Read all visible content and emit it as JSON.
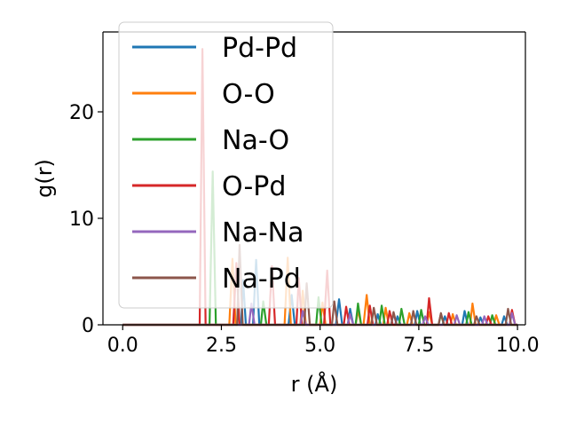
{
  "chart_data": {
    "type": "line",
    "xlabel": "r (Å)",
    "ylabel": "g(r)",
    "xlim": [
      -0.5,
      10.2
    ],
    "ylim": [
      0,
      27.5
    ],
    "xticks": [
      0.0,
      2.5,
      5.0,
      7.5,
      10.0
    ],
    "xtick_labels": [
      "0.0",
      "2.5",
      "5.0",
      "7.5",
      "10.0"
    ],
    "yticks": [
      0,
      10,
      20
    ],
    "ytick_labels": [
      "0",
      "10",
      "20"
    ],
    "grid": false,
    "legend_position": "upper-left",
    "series": [
      {
        "name": "Pd-Pd",
        "color": "#1f77b4",
        "points": [
          [
            0,
            0
          ],
          [
            3.0,
            0
          ],
          [
            3.05,
            4.2
          ],
          [
            3.12,
            0
          ],
          [
            3.3,
            0
          ],
          [
            3.38,
            6.1
          ],
          [
            3.46,
            0
          ],
          [
            4.2,
            0
          ],
          [
            4.28,
            2.8
          ],
          [
            4.36,
            0
          ],
          [
            5.4,
            0
          ],
          [
            5.48,
            2.4
          ],
          [
            5.56,
            0
          ],
          [
            5.7,
            0
          ],
          [
            5.76,
            1.5
          ],
          [
            5.84,
            0
          ],
          [
            6.4,
            0
          ],
          [
            6.46,
            1.0
          ],
          [
            6.54,
            0
          ],
          [
            6.9,
            0
          ],
          [
            6.96,
            0.8
          ],
          [
            7.04,
            0
          ],
          [
            7.4,
            0
          ],
          [
            7.46,
            1.3
          ],
          [
            7.54,
            0
          ],
          [
            8.1,
            0
          ],
          [
            8.16,
            0.8
          ],
          [
            8.24,
            0
          ],
          [
            8.6,
            0
          ],
          [
            8.66,
            1.3
          ],
          [
            8.74,
            0
          ],
          [
            9.0,
            0
          ],
          [
            9.06,
            0.7
          ],
          [
            9.14,
            0
          ],
          [
            9.6,
            0
          ],
          [
            9.66,
            0.8
          ],
          [
            9.74,
            0
          ],
          [
            10.0,
            0
          ]
        ]
      },
      {
        "name": "O-O",
        "color": "#ff7f0e",
        "points": [
          [
            0,
            0
          ],
          [
            2.7,
            0
          ],
          [
            2.78,
            6.2
          ],
          [
            2.86,
            0
          ],
          [
            4.1,
            0
          ],
          [
            4.18,
            6.3
          ],
          [
            4.26,
            0
          ],
          [
            4.5,
            0
          ],
          [
            4.56,
            3.2
          ],
          [
            4.64,
            0
          ],
          [
            5.0,
            0
          ],
          [
            5.06,
            2.1
          ],
          [
            5.14,
            0
          ],
          [
            5.9,
            0
          ],
          [
            5.96,
            1.4
          ],
          [
            6.04,
            0
          ],
          [
            6.1,
            0
          ],
          [
            6.18,
            2.8
          ],
          [
            6.26,
            0
          ],
          [
            6.6,
            0
          ],
          [
            6.66,
            1.6
          ],
          [
            6.74,
            0
          ],
          [
            7.2,
            0
          ],
          [
            7.26,
            1.1
          ],
          [
            7.34,
            0
          ],
          [
            7.7,
            0
          ],
          [
            7.76,
            1.2
          ],
          [
            7.84,
            0
          ],
          [
            8.3,
            0
          ],
          [
            8.36,
            1.0
          ],
          [
            8.44,
            0
          ],
          [
            8.8,
            0
          ],
          [
            8.86,
            2.0
          ],
          [
            8.94,
            0
          ],
          [
            9.4,
            0
          ],
          [
            9.46,
            0.9
          ],
          [
            9.54,
            0
          ],
          [
            10.0,
            0
          ]
        ]
      },
      {
        "name": "Na-O",
        "color": "#2ca02c",
        "points": [
          [
            0,
            0
          ],
          [
            2.2,
            0
          ],
          [
            2.28,
            14.4
          ],
          [
            2.36,
            0
          ],
          [
            3.5,
            0
          ],
          [
            3.56,
            2.2
          ],
          [
            3.64,
            0
          ],
          [
            4.9,
            0
          ],
          [
            4.96,
            2.6
          ],
          [
            5.04,
            0
          ],
          [
            5.9,
            0
          ],
          [
            5.96,
            2.0
          ],
          [
            6.04,
            0
          ],
          [
            6.5,
            0
          ],
          [
            6.56,
            1.8
          ],
          [
            6.64,
            0
          ],
          [
            7.0,
            0
          ],
          [
            7.06,
            1.5
          ],
          [
            7.14,
            0
          ],
          [
            7.5,
            0
          ],
          [
            7.56,
            1.4
          ],
          [
            7.64,
            0
          ],
          [
            8.0,
            0
          ],
          [
            8.06,
            1.0
          ],
          [
            8.14,
            0
          ],
          [
            8.7,
            0
          ],
          [
            8.76,
            1.2
          ],
          [
            8.84,
            0
          ],
          [
            9.3,
            0
          ],
          [
            9.36,
            0.9
          ],
          [
            9.44,
            0
          ],
          [
            10.0,
            0
          ]
        ]
      },
      {
        "name": "O-Pd",
        "color": "#d62728",
        "points": [
          [
            0,
            0
          ],
          [
            1.95,
            0
          ],
          [
            2.02,
            25.9
          ],
          [
            2.1,
            0
          ],
          [
            2.8,
            0
          ],
          [
            2.88,
            5.8
          ],
          [
            2.96,
            0
          ],
          [
            3.7,
            0
          ],
          [
            3.78,
            5.5
          ],
          [
            3.86,
            0
          ],
          [
            4.4,
            0
          ],
          [
            4.46,
            4.4
          ],
          [
            4.54,
            0
          ],
          [
            5.1,
            0
          ],
          [
            5.18,
            5.1
          ],
          [
            5.26,
            0
          ],
          [
            5.6,
            0
          ],
          [
            5.66,
            1.7
          ],
          [
            5.74,
            0
          ],
          [
            6.2,
            0
          ],
          [
            6.26,
            1.8
          ],
          [
            6.34,
            0
          ],
          [
            6.7,
            0
          ],
          [
            6.76,
            1.3
          ],
          [
            6.84,
            0
          ],
          [
            7.7,
            0
          ],
          [
            7.76,
            2.5
          ],
          [
            7.84,
            0
          ],
          [
            8.2,
            0
          ],
          [
            8.26,
            1.1
          ],
          [
            8.34,
            0
          ],
          [
            9.2,
            0
          ],
          [
            9.26,
            0.8
          ],
          [
            9.34,
            0
          ],
          [
            9.8,
            0
          ],
          [
            9.86,
            1.4
          ],
          [
            9.94,
            0
          ],
          [
            10.0,
            0
          ]
        ]
      },
      {
        "name": "Na-Na",
        "color": "#9467bd",
        "points": [
          [
            0,
            0
          ],
          [
            3.2,
            0
          ],
          [
            3.26,
            2.0
          ],
          [
            3.34,
            0
          ],
          [
            4.5,
            0
          ],
          [
            4.56,
            1.3
          ],
          [
            4.64,
            0
          ],
          [
            5.7,
            0
          ],
          [
            5.76,
            1.0
          ],
          [
            5.84,
            0
          ],
          [
            6.8,
            0
          ],
          [
            6.86,
            1.1
          ],
          [
            6.94,
            0
          ],
          [
            7.6,
            0
          ],
          [
            7.66,
            0.8
          ],
          [
            7.74,
            0
          ],
          [
            8.4,
            0
          ],
          [
            8.46,
            0.9
          ],
          [
            8.54,
            0
          ],
          [
            9.1,
            0
          ],
          [
            9.16,
            0.8
          ],
          [
            9.24,
            0
          ],
          [
            9.8,
            0
          ],
          [
            9.86,
            1.1
          ],
          [
            9.94,
            0
          ],
          [
            10.0,
            0
          ]
        ]
      },
      {
        "name": "Na-Pd",
        "color": "#8c564b",
        "points": [
          [
            0,
            0
          ],
          [
            2.9,
            0
          ],
          [
            2.96,
            7.5
          ],
          [
            3.04,
            0
          ],
          [
            4.6,
            0
          ],
          [
            4.66,
            3.9
          ],
          [
            4.74,
            0
          ],
          [
            5.3,
            0
          ],
          [
            5.36,
            2.2
          ],
          [
            5.44,
            0
          ],
          [
            6.3,
            0
          ],
          [
            6.36,
            1.6
          ],
          [
            6.44,
            0
          ],
          [
            6.8,
            0
          ],
          [
            6.86,
            1.2
          ],
          [
            6.94,
            0
          ],
          [
            7.3,
            0
          ],
          [
            7.36,
            1.3
          ],
          [
            7.44,
            0
          ],
          [
            8.0,
            0
          ],
          [
            8.06,
            1.1
          ],
          [
            8.14,
            0
          ],
          [
            8.9,
            0
          ],
          [
            8.96,
            0.8
          ],
          [
            9.04,
            0
          ],
          [
            9.7,
            0
          ],
          [
            9.76,
            1.5
          ],
          [
            9.84,
            0
          ],
          [
            10.0,
            0
          ]
        ]
      }
    ]
  }
}
